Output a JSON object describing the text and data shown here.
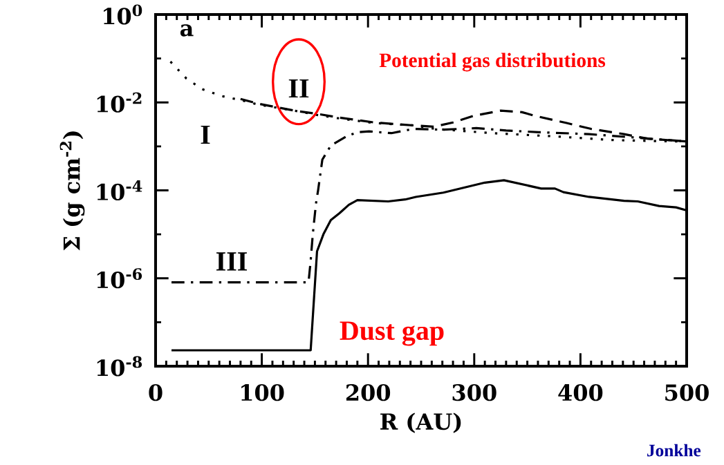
{
  "chart_data": {
    "type": "line",
    "xlabel": "R (AU)",
    "ylabel": "Σ (g cm$^{-2}$)",
    "log": "y",
    "xlim": [
      0,
      500
    ],
    "xticks": [
      0,
      100,
      200,
      300,
      400,
      500
    ],
    "ylim": [
      1e-08,
      1
    ],
    "yticks": [
      {
        "value": 1,
        "label": "10$^{0}$"
      },
      {
        "value": 0.1,
        "label": null
      },
      {
        "value": 0.01,
        "label": "10$^{-2}$"
      },
      {
        "value": 0.001,
        "label": null
      },
      {
        "value": 0.0001,
        "label": "10$^{-4}$"
      },
      {
        "value": 1e-05,
        "label": null
      },
      {
        "value": 1e-06,
        "label": "10$^{-6}$"
      },
      {
        "value": 1e-07,
        "label": null
      },
      {
        "value": 1e-08,
        "label": "10$^{-8}$"
      }
    ],
    "series": [
      {
        "color": "#000000",
        "line_style": "solid",
        "x": [
          15,
          146,
          152,
          158,
          165,
          173,
          182,
          190,
          219,
          235,
          245,
          271,
          310,
          328,
          363,
          376,
          384,
          408,
          441,
          454,
          474,
          490,
          500
        ],
        "values": [
          2.3e-08,
          2.3e-08,
          4.1e-06,
          1e-05,
          2.1e-05,
          3e-05,
          4.7e-05,
          6e-05,
          5.6e-05,
          6.2e-05,
          7.1e-05,
          8.9e-05,
          0.00015,
          0.00017,
          0.00011,
          0.00011,
          9.1e-05,
          7.1e-05,
          5.8e-05,
          5.6e-05,
          4.4e-05,
          4.1e-05,
          3.5e-05
        ]
      },
      {
        "color": "#000000",
        "line_style": "dotted",
        "x": [
          14,
          29,
          44,
          62,
          82,
          97,
          134,
          152,
          171,
          206,
          243,
          263,
          317,
          374,
          428,
          484,
          499
        ],
        "values": [
          0.085,
          0.035,
          0.02,
          0.014,
          0.011,
          0.0089,
          0.0063,
          0.0052,
          0.0044,
          0.0034,
          0.003,
          0.0025,
          0.002,
          0.0017,
          0.0014,
          0.0013,
          0.0013
        ]
      },
      {
        "color": "#000000",
        "line_style": "dashed",
        "x": [
          80,
          97,
          134,
          152,
          171,
          206,
          243,
          262,
          280,
          300,
          325,
          345,
          358,
          387,
          410,
          441,
          463,
          499
        ],
        "values": [
          0.012,
          0.0093,
          0.0063,
          0.0055,
          0.0046,
          0.0035,
          0.003,
          0.0028,
          0.0035,
          0.005,
          0.0065,
          0.006,
          0.0049,
          0.0034,
          0.0025,
          0.0019,
          0.0015,
          0.0013
        ]
      },
      {
        "color": "#000000",
        "line_style": "dashdot",
        "x": [
          15,
          144,
          146,
          148,
          151,
          153,
          157,
          165,
          180,
          190,
          201,
          222,
          243,
          270,
          302,
          330,
          361,
          408,
          450,
          499
        ],
        "values": [
          8.1e-07,
          8.1e-07,
          2.5e-06,
          1e-05,
          5e-05,
          0.0001,
          0.0005,
          0.00105,
          0.0017,
          0.0021,
          0.0022,
          0.002,
          0.0025,
          0.0024,
          0.0026,
          0.0023,
          0.0021,
          0.0019,
          0.0016,
          0.0013
        ]
      }
    ],
    "annotations": [
      "I",
      "II",
      "III",
      "a",
      "Potential gas distributions",
      "Dust gap",
      "Jonkhe"
    ]
  }
}
